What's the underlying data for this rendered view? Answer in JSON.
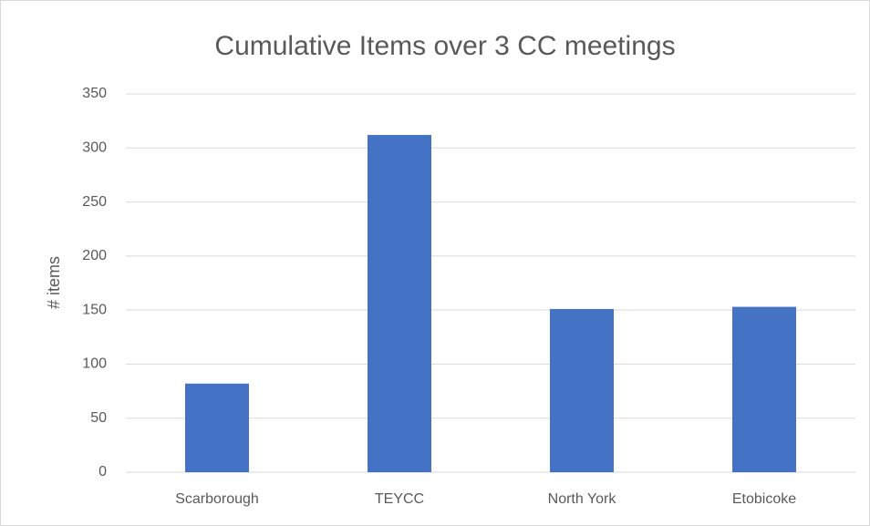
{
  "chart_data": {
    "type": "bar",
    "title": "Cumulative Items over 3 CC meetings",
    "y_label": "# items",
    "categories": [
      "Scarborough",
      "TEYCC",
      "North York",
      "Etobicoke"
    ],
    "values": [
      82,
      312,
      151,
      153
    ],
    "color": "#4472c4",
    "ylim": [
      0,
      350
    ],
    "yticks": [
      0,
      50,
      100,
      150,
      200,
      250,
      300,
      350
    ],
    "grid": true
  }
}
